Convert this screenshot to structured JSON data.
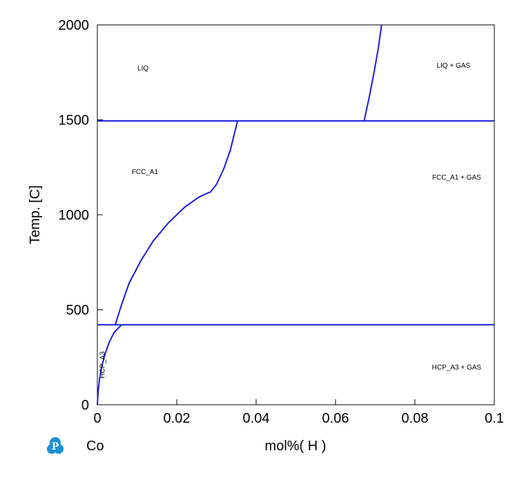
{
  "chart_data": {
    "type": "line",
    "title": "",
    "xlabel": "mol%(  H  )",
    "ylabel": "Temp.  [C]",
    "xlim": [
      0,
      0.1
    ],
    "ylim": [
      0,
      2000
    ],
    "x_ticks": [
      0,
      0.02,
      0.04,
      0.06,
      0.08,
      0.1
    ],
    "x_tick_labels": [
      "0",
      "0.02",
      "0.04",
      "0.06",
      "0.08",
      "0.1"
    ],
    "y_ticks": [
      0,
      500,
      1000,
      1500,
      2000
    ],
    "y_tick_labels": [
      "0",
      "500",
      "1000",
      "1500",
      "2000"
    ],
    "grid": false,
    "line_color": "#1a1adc",
    "series": [
      {
        "x": [
          0,
          0.1
        ],
        "y": [
          1494,
          1494
        ]
      },
      {
        "x": [
          0,
          0.1
        ],
        "y": [
          421,
          421
        ]
      },
      {
        "x": [
          0.0672,
          0.0685,
          0.0697,
          0.0708,
          0.0716
        ],
        "y": [
          1494,
          1620,
          1750,
          1880,
          2000
        ]
      },
      {
        "x": [
          0.0045,
          0.006,
          0.008,
          0.011,
          0.014,
          0.018,
          0.022,
          0.0255,
          0.0278,
          0.0285,
          0.03,
          0.0318,
          0.0335,
          0.0353
        ],
        "y": [
          421,
          520,
          640,
          760,
          860,
          960,
          1040,
          1092,
          1115,
          1120,
          1160,
          1240,
          1340,
          1494
        ]
      },
      {
        "x": [
          0,
          0.0002,
          0.0006,
          0.0012,
          0.002,
          0.003,
          0.0042,
          0.0061
        ],
        "y": [
          0,
          70,
          140,
          210,
          270,
          330,
          380,
          421
        ]
      }
    ],
    "annotations": [
      {
        "text": "LIQ",
        "x": 0.0115,
        "y": 1760
      },
      {
        "text": "LIQ + GAS",
        "x": 0.0897,
        "y": 1775
      },
      {
        "text": "FCC_A1",
        "x": 0.012,
        "y": 1215
      },
      {
        "text": "FCC_A1 + GAS",
        "x": 0.0905,
        "y": 1185
      },
      {
        "text": "HCP_A3",
        "x": 0.0018,
        "y": 210,
        "rotate": -90
      },
      {
        "text": "HCP_A3 + GAS",
        "x": 0.0905,
        "y": 185
      }
    ]
  },
  "footer": {
    "logo_icon": "p-logo-icon",
    "element": "Co"
  }
}
